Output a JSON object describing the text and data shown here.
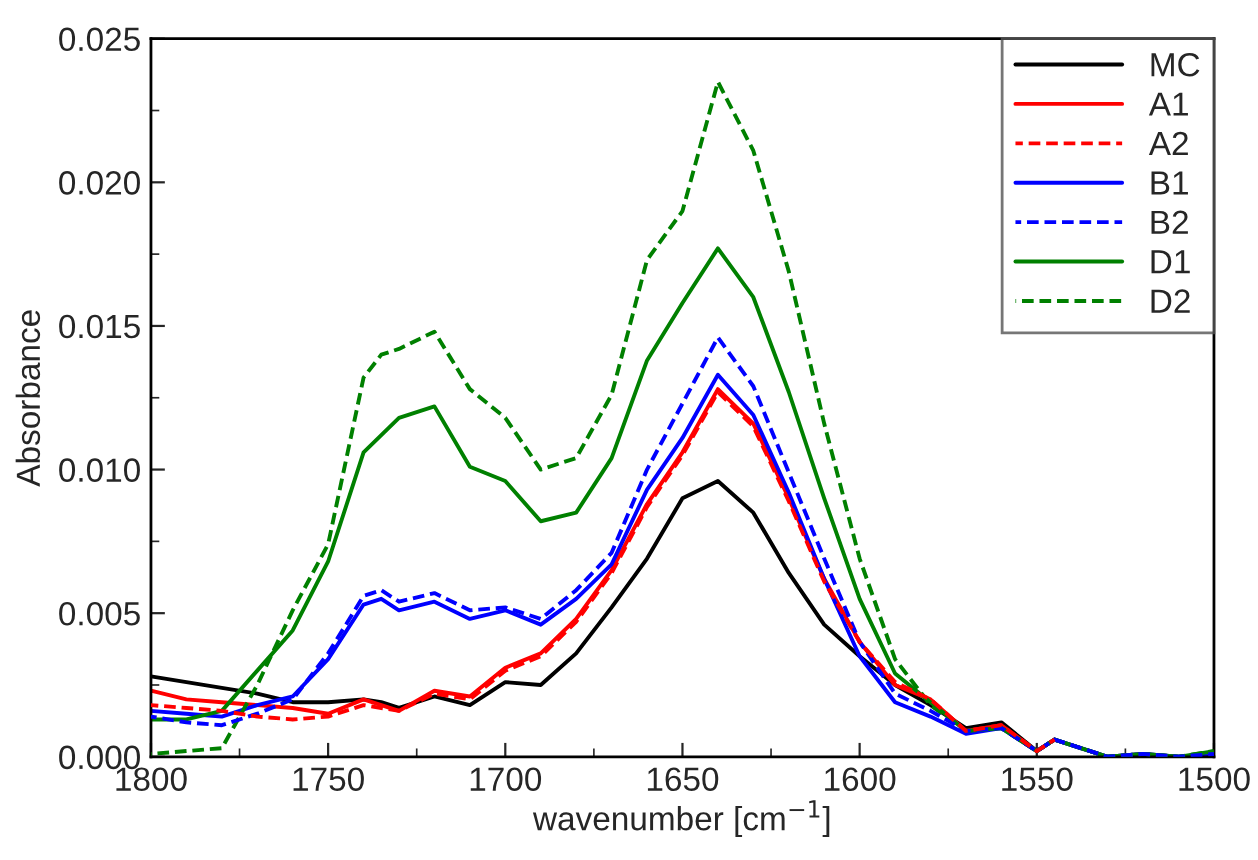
{
  "chart_data": {
    "type": "line",
    "xlabel": "wavenumber [cm$^{−1}$]",
    "ylabel": "Absorbance",
    "x": [
      1800,
      1790,
      1780,
      1770,
      1760,
      1750,
      1740,
      1735,
      1730,
      1720,
      1710,
      1700,
      1690,
      1680,
      1670,
      1660,
      1650,
      1640,
      1630,
      1620,
      1610,
      1600,
      1590,
      1580,
      1570,
      1560,
      1550,
      1545,
      1530,
      1520,
      1510,
      1500
    ],
    "series": [
      {
        "name": "MC",
        "color": "#000000",
        "line_style": "solid",
        "values": [
          0.0028,
          0.0026,
          0.0024,
          0.0022,
          0.0019,
          0.0019,
          0.002,
          0.0019,
          0.0017,
          0.0021,
          0.0018,
          0.0026,
          0.0025,
          0.0036,
          0.0052,
          0.0069,
          0.009,
          0.0096,
          0.0085,
          0.0064,
          0.0046,
          0.0035,
          0.0025,
          0.0018,
          0.001,
          0.0012,
          0.0002,
          0.0006,
          0,
          0.0001,
          0,
          0.0001
        ]
      },
      {
        "name": "A1",
        "color": "#ff0000",
        "line_style": "solid",
        "values": [
          0.0023,
          0.002,
          0.0019,
          0.0018,
          0.0017,
          0.0015,
          0.002,
          0.0018,
          0.0016,
          0.0023,
          0.0021,
          0.0031,
          0.0036,
          0.0048,
          0.0065,
          0.0088,
          0.0106,
          0.0128,
          0.0116,
          0.009,
          0.0062,
          0.004,
          0.0025,
          0.002,
          0.0009,
          0.0011,
          0.0002,
          0.0006,
          null,
          null,
          null,
          null
        ]
      },
      {
        "name": "A2",
        "color": "#ff0000",
        "line_style": "dashed",
        "values": [
          0.0018,
          0.0017,
          0.0016,
          0.0014,
          0.0013,
          0.0014,
          0.0018,
          0.0017,
          0.0016,
          0.0022,
          0.002,
          0.003,
          0.0035,
          0.0047,
          0.0064,
          0.0087,
          0.0105,
          0.0127,
          0.0115,
          0.0089,
          0.0061,
          0.004,
          0.0026,
          0.002,
          0.0009,
          0.0011,
          0.0002,
          0.0006,
          null,
          null,
          null,
          null
        ]
      },
      {
        "name": "B1",
        "color": "#0000ff",
        "line_style": "solid",
        "values": [
          0.0016,
          0.0015,
          0.0014,
          0.0018,
          0.0021,
          0.0034,
          0.0053,
          0.0055,
          0.0051,
          0.0054,
          0.0048,
          0.0051,
          0.0046,
          0.0055,
          0.0067,
          0.0093,
          0.0111,
          0.0133,
          0.0119,
          0.0092,
          0.0062,
          0.0035,
          0.0019,
          0.0014,
          0.0008,
          0.001,
          0.0002,
          0.0006,
          0,
          0.0001,
          0,
          0.0001
        ]
      },
      {
        "name": "B2",
        "color": "#0000ff",
        "line_style": "dashed",
        "values": [
          0.0014,
          0.0012,
          0.0011,
          0.0015,
          0.002,
          0.0036,
          0.0056,
          0.0058,
          0.0054,
          0.0057,
          0.0051,
          0.0052,
          0.0048,
          0.0058,
          0.0071,
          0.01,
          0.0123,
          0.0146,
          0.0129,
          0.0099,
          0.0069,
          0.004,
          0.0022,
          0.0016,
          0.0009,
          0.001,
          0.0002,
          0.0006,
          0,
          0.0001,
          0,
          0.0001
        ]
      },
      {
        "name": "D1",
        "color": "#008000",
        "line_style": "solid",
        "values": [
          0.0013,
          0.0013,
          0.0016,
          0.003,
          0.0044,
          0.0068,
          0.0106,
          0.0112,
          0.0118,
          0.0122,
          0.0101,
          0.0096,
          0.0082,
          0.0085,
          0.0104,
          0.0138,
          0.0158,
          0.0177,
          0.016,
          0.0127,
          0.009,
          0.0055,
          0.0029,
          0.0019,
          0.0009,
          0.001,
          0.0002,
          0.0006,
          0,
          0.0001,
          0,
          0.0002
        ]
      },
      {
        "name": "D2",
        "color": "#008000",
        "line_style": "dashed",
        "values": [
          0.0001,
          0.0002,
          0.0003,
          0.0025,
          0.0051,
          0.0074,
          0.0132,
          0.014,
          0.0142,
          0.0148,
          0.0128,
          0.0118,
          0.01,
          0.0104,
          0.0126,
          0.0173,
          0.019,
          0.0235,
          0.0211,
          0.0169,
          0.0116,
          0.0069,
          0.0034,
          0.0018,
          0.0009,
          0.001,
          0.0002,
          0.0006,
          0,
          0.0001,
          0,
          0.0002
        ]
      }
    ],
    "xlim": [
      1800,
      1500
    ],
    "xticks": [
      1800,
      1750,
      1700,
      1650,
      1600,
      1550,
      1500
    ],
    "ylim": [
      0,
      0.025
    ],
    "yticks": [
      {
        "value": 0,
        "label": "0.000"
      },
      {
        "value": 0.005,
        "label": "0.005"
      },
      {
        "value": 0.01,
        "label": "0.010"
      },
      {
        "value": 0.015,
        "label": "0.015"
      },
      {
        "value": 0.02,
        "label": "0.020"
      },
      {
        "value": 0.025,
        "label": "0.025"
      }
    ],
    "grid": false,
    "legend": "top right",
    "marker": "none"
  }
}
